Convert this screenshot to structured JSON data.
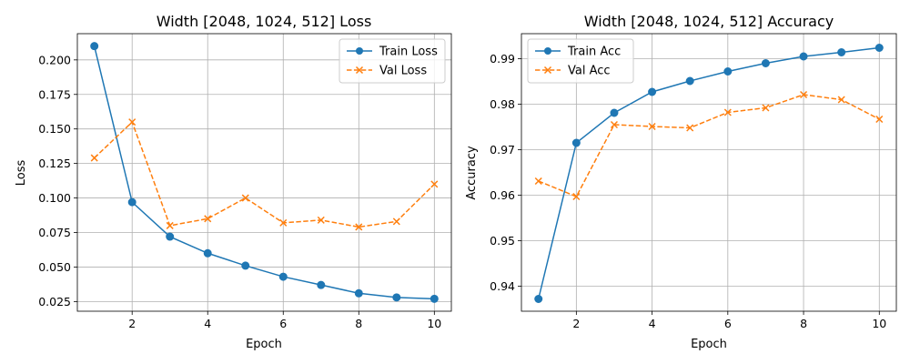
{
  "chart_data": [
    {
      "type": "line",
      "title": "Width [2048, 1024, 512] Loss",
      "xlabel": "Epoch",
      "ylabel": "Loss",
      "x": [
        1,
        2,
        3,
        4,
        5,
        6,
        7,
        8,
        9,
        10
      ],
      "xlim": [
        0.55,
        10.45
      ],
      "ylim": [
        0.018,
        0.219
      ],
      "xticks": [
        2,
        4,
        6,
        8,
        10
      ],
      "yticks": [
        0.025,
        0.05,
        0.075,
        0.1,
        0.125,
        0.15,
        0.175,
        0.2
      ],
      "xtick_labels": [
        "2",
        "4",
        "6",
        "8",
        "10"
      ],
      "ytick_labels": [
        "0.025",
        "0.050",
        "0.075",
        "0.100",
        "0.125",
        "0.150",
        "0.175",
        "0.200"
      ],
      "grid": true,
      "legend_position": "top-right",
      "series": [
        {
          "name": "Train Loss",
          "color": "#1f77b4",
          "marker": "circle",
          "linestyle": "solid",
          "values": [
            0.21,
            0.097,
            0.072,
            0.06,
            0.051,
            0.043,
            0.037,
            0.031,
            0.028,
            0.027
          ]
        },
        {
          "name": "Val Loss",
          "color": "#ff7f0e",
          "marker": "x",
          "linestyle": "dashed",
          "values": [
            0.129,
            0.155,
            0.08,
            0.085,
            0.1,
            0.082,
            0.084,
            0.079,
            0.083,
            0.11
          ]
        }
      ]
    },
    {
      "type": "line",
      "title": "Width [2048, 1024, 512] Accuracy",
      "xlabel": "Epoch",
      "ylabel": "Accuracy",
      "x": [
        1,
        2,
        3,
        4,
        5,
        6,
        7,
        8,
        9,
        10
      ],
      "xlim": [
        0.55,
        10.45
      ],
      "ylim": [
        0.9345,
        0.9955
      ],
      "xticks": [
        2,
        4,
        6,
        8,
        10
      ],
      "yticks": [
        0.94,
        0.95,
        0.96,
        0.97,
        0.98,
        0.99
      ],
      "xtick_labels": [
        "2",
        "4",
        "6",
        "8",
        "10"
      ],
      "ytick_labels": [
        "0.94",
        "0.95",
        "0.96",
        "0.97",
        "0.98",
        "0.99"
      ],
      "grid": true,
      "legend_position": "top-left",
      "series": [
        {
          "name": "Train Acc",
          "color": "#1f77b4",
          "marker": "circle",
          "linestyle": "solid",
          "values": [
            0.9372,
            0.9715,
            0.9781,
            0.9827,
            0.9851,
            0.9872,
            0.989,
            0.9905,
            0.9914,
            0.9924
          ]
        },
        {
          "name": "Val Acc",
          "color": "#ff7f0e",
          "marker": "x",
          "linestyle": "dashed",
          "values": [
            0.9631,
            0.9597,
            0.9755,
            0.9751,
            0.9748,
            0.9782,
            0.9792,
            0.9821,
            0.981,
            0.9767
          ]
        }
      ]
    }
  ]
}
